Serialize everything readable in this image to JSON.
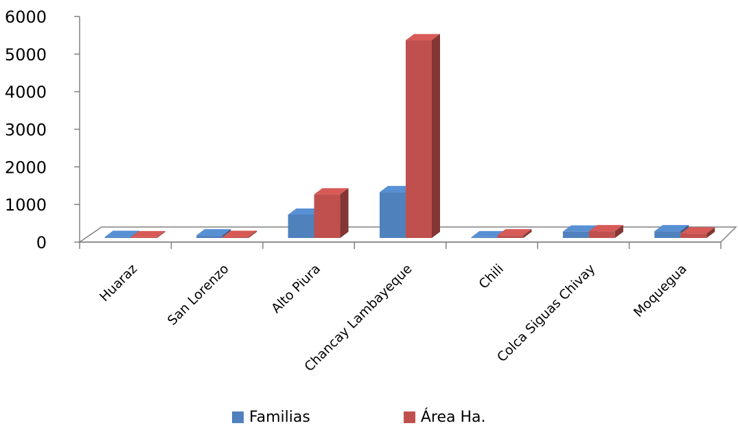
{
  "chart_data": {
    "type": "bar",
    "title": "",
    "xlabel": "",
    "ylabel": "",
    "ylim": [
      0,
      6000
    ],
    "yticks": [
      "0",
      "1000",
      "2000",
      "3000",
      "4000",
      "5000",
      "6000"
    ],
    "categories": [
      "Huaraz",
      "San Lorenzo",
      "Alto Piura",
      "Chancay Lambayeque",
      "Chili",
      "Colca Siguas Chivay",
      "Moquegua"
    ],
    "series": [
      {
        "name": "Familias",
        "color": "#4F81BD",
        "values": [
          30,
          70,
          620,
          1220,
          20,
          170,
          180
        ]
      },
      {
        "name": "Área Ha.",
        "color": "#C0504D",
        "values": [
          20,
          30,
          1160,
          5260,
          70,
          180,
          120
        ]
      }
    ],
    "grid": false,
    "legend_position": "bottom",
    "style": "3d-clustered-column"
  }
}
